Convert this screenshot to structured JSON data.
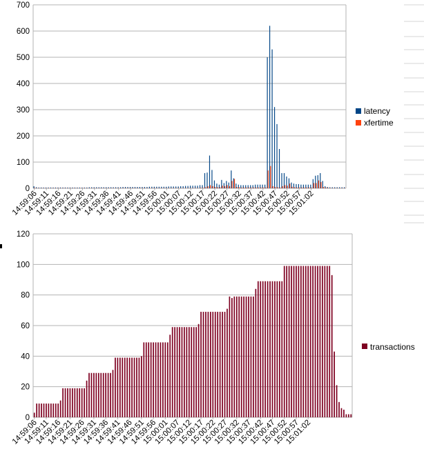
{
  "colors": {
    "latency": "#004586",
    "xfertime": "#ff420e",
    "transactions": "#7e0021",
    "grid": "#b3b3b3",
    "axis": "#b3b3b3"
  },
  "chart_data": [
    {
      "type": "bar",
      "title": "",
      "xlabel": "",
      "ylabel": "",
      "ylim": [
        0,
        700
      ],
      "yticks": [
        "0",
        "100",
        "200",
        "300",
        "400",
        "500",
        "600",
        "700"
      ],
      "xticks": [
        "14:59:06",
        "14:59:11",
        "14:59:16",
        "14:59:21",
        "14:59:26",
        "14:59:31",
        "14:59:36",
        "14:59:41",
        "14:59:46",
        "14:59:51",
        "14:59:56",
        "15:00:01",
        "15:00:07",
        "15:00:12",
        "15:00:17",
        "15:00:22",
        "15:00:27",
        "15:00:32",
        "15:00:37",
        "15:00:42",
        "15:00:47",
        "15:00:52",
        "15:00:57",
        "15:01:02"
      ],
      "grid": "horizontal",
      "legend": "right",
      "series": [
        {
          "name": "latency",
          "values": [
            8,
            4,
            3,
            3,
            3,
            3,
            3,
            3,
            3,
            3,
            3,
            3,
            3,
            3,
            3,
            3,
            3,
            3,
            3,
            3,
            3,
            3,
            3,
            4,
            4,
            4,
            4,
            4,
            4,
            4,
            4,
            4,
            4,
            4,
            4,
            4,
            4,
            5,
            5,
            5,
            5,
            5,
            5,
            5,
            5,
            5,
            5,
            5,
            6,
            6,
            6,
            6,
            6,
            6,
            6,
            6,
            7,
            7,
            7,
            7,
            7,
            8,
            8,
            9,
            9,
            10,
            10,
            10,
            10,
            12,
            12,
            58,
            60,
            125,
            70,
            30,
            18,
            14,
            32,
            20,
            28,
            22,
            68,
            38,
            18,
            14,
            12,
            12,
            12,
            12,
            12,
            12,
            14,
            14,
            14,
            14,
            14,
            500,
            620,
            530,
            310,
            245,
            150,
            58,
            58,
            45,
            38,
            22,
            18,
            16,
            16,
            14,
            14,
            14,
            14,
            14,
            35,
            48,
            50,
            58,
            28,
            8,
            5,
            4,
            4,
            4,
            4,
            4,
            4,
            4
          ]
        },
        {
          "name": "xfertime",
          "values": [
            2,
            1,
            1,
            1,
            1,
            1,
            1,
            1,
            1,
            1,
            1,
            1,
            1,
            1,
            1,
            1,
            1,
            1,
            1,
            1,
            1,
            1,
            1,
            1,
            1,
            1,
            1,
            1,
            1,
            1,
            1,
            1,
            1,
            1,
            1,
            1,
            1,
            1,
            1,
            1,
            1,
            1,
            1,
            1,
            1,
            1,
            1,
            1,
            1,
            1,
            1,
            1,
            1,
            1,
            1,
            1,
            1,
            1,
            1,
            1,
            1,
            1,
            1,
            1,
            1,
            1,
            1,
            1,
            1,
            2,
            2,
            4,
            8,
            12,
            8,
            5,
            4,
            4,
            10,
            8,
            12,
            8,
            28,
            36,
            5,
            4,
            3,
            3,
            3,
            3,
            3,
            3,
            3,
            3,
            3,
            3,
            3,
            68,
            85,
            8,
            5,
            4,
            3,
            8,
            12,
            10,
            18,
            6,
            4,
            3,
            3,
            3,
            3,
            3,
            3,
            3,
            20,
            20,
            30,
            24,
            5,
            3,
            2,
            1,
            1,
            1,
            1,
            1,
            1,
            1
          ]
        }
      ]
    },
    {
      "type": "bar",
      "title": "",
      "xlabel": "",
      "ylabel": "",
      "ylim": [
        0,
        120
      ],
      "yticks": [
        "0",
        "20",
        "40",
        "60",
        "80",
        "100",
        "120"
      ],
      "xticks": [
        "14:59:06",
        "14:59:11",
        "14:59:16",
        "14:59:21",
        "14:59:26",
        "14:59:31",
        "14:59:36",
        "14:59:41",
        "14:59:46",
        "14:59:51",
        "14:59:56",
        "15:00:01",
        "15:00:07",
        "15:00:12",
        "15:00:17",
        "15:00:22",
        "15:00:27",
        "15:00:32",
        "15:00:37",
        "15:00:42",
        "15:00:47",
        "15:00:52",
        "15:00:57",
        "15:01:02"
      ],
      "grid": "horizontal",
      "legend": "right",
      "series": [
        {
          "name": "transactions",
          "values": [
            3,
            9,
            9,
            9,
            9,
            9,
            9,
            9,
            9,
            9,
            9,
            11,
            19,
            19,
            19,
            19,
            19,
            19,
            19,
            19,
            19,
            19,
            24,
            29,
            29,
            29,
            29,
            29,
            29,
            29,
            29,
            29,
            29,
            31,
            39,
            39,
            39,
            39,
            39,
            39,
            39,
            39,
            39,
            39,
            39,
            40,
            49,
            49,
            49,
            49,
            49,
            49,
            49,
            49,
            49,
            49,
            49,
            54,
            59,
            59,
            59,
            59,
            59,
            59,
            59,
            59,
            59,
            59,
            59,
            61,
            69,
            69,
            69,
            69,
            69,
            69,
            69,
            69,
            69,
            69,
            69,
            71,
            79,
            78,
            79,
            79,
            79,
            79,
            79,
            79,
            79,
            79,
            79,
            84,
            89,
            89,
            89,
            89,
            89,
            89,
            89,
            89,
            89,
            89,
            89,
            99,
            99,
            99,
            99,
            99,
            99,
            99,
            99,
            99,
            99,
            99,
            99,
            99,
            99,
            99,
            99,
            99,
            99,
            99,
            99,
            93,
            43,
            21,
            10,
            6,
            5,
            2,
            2,
            2
          ]
        }
      ]
    }
  ]
}
